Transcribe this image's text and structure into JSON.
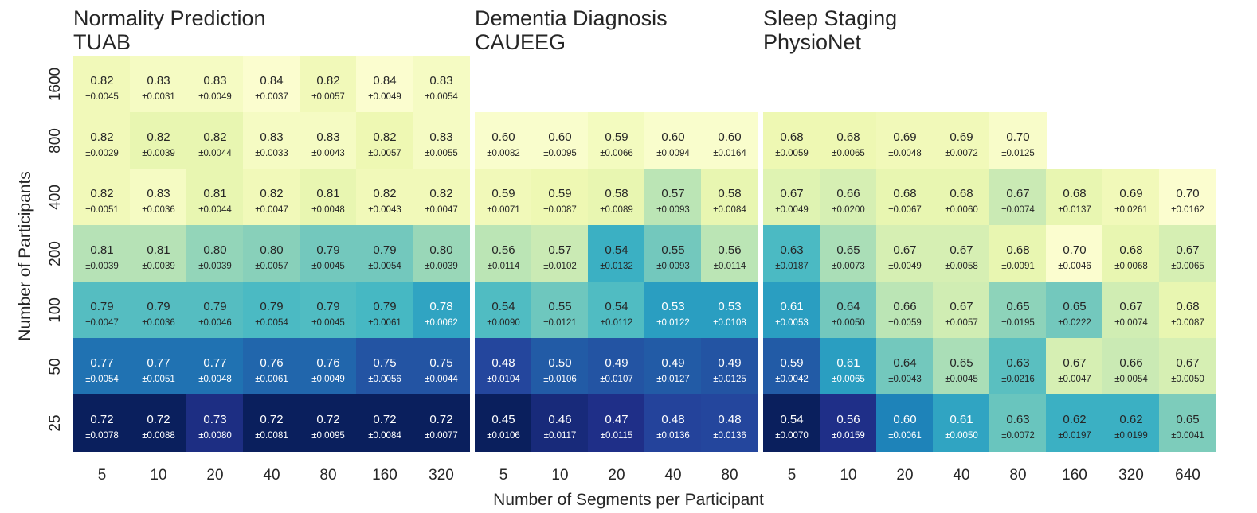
{
  "chart_data": {
    "type": "heatmap",
    "xlabel": "Number of Segments per Participant",
    "ylabel": "Number of Participants",
    "colormap": "YlGnBu",
    "color_range": [
      0.5,
      0.95
    ],
    "colors": {
      "text_dark": "#262626",
      "text_light": "#ffffff",
      "background": "#ffffff"
    },
    "panels": [
      {
        "id": "tuab",
        "title_line1": "Normality Prediction",
        "title_line2": "TUAB",
        "x": [
          5,
          10,
          20,
          40,
          80,
          160,
          320
        ],
        "y": [
          1600,
          800,
          400,
          200,
          100,
          50,
          25
        ],
        "mean": [
          [
            "0.82",
            "0.83",
            "0.83",
            "0.84",
            "0.82",
            "0.84",
            "0.83"
          ],
          [
            "0.82",
            "0.82",
            "0.82",
            "0.83",
            "0.83",
            "0.82",
            "0.83"
          ],
          [
            "0.82",
            "0.83",
            "0.81",
            "0.82",
            "0.81",
            "0.82",
            "0.82"
          ],
          [
            "0.81",
            "0.81",
            "0.80",
            "0.80",
            "0.79",
            "0.79",
            "0.80"
          ],
          [
            "0.79",
            "0.79",
            "0.79",
            "0.79",
            "0.79",
            "0.79",
            "0.78"
          ],
          [
            "0.77",
            "0.77",
            "0.77",
            "0.76",
            "0.76",
            "0.75",
            "0.75"
          ],
          [
            "0.72",
            "0.72",
            "0.73",
            "0.72",
            "0.72",
            "0.72",
            "0.72"
          ]
        ],
        "std": [
          [
            "±0.0045",
            "±0.0031",
            "±0.0049",
            "±0.0037",
            "±0.0057",
            "±0.0049",
            "±0.0054"
          ],
          [
            "±0.0029",
            "±0.0039",
            "±0.0044",
            "±0.0033",
            "±0.0043",
            "±0.0057",
            "±0.0055"
          ],
          [
            "±0.0051",
            "±0.0036",
            "±0.0044",
            "±0.0047",
            "±0.0048",
            "±0.0043",
            "±0.0047"
          ],
          [
            "±0.0039",
            "±0.0039",
            "±0.0039",
            "±0.0057",
            "±0.0045",
            "±0.0054",
            "±0.0039"
          ],
          [
            "±0.0047",
            "±0.0036",
            "±0.0046",
            "±0.0054",
            "±0.0045",
            "±0.0061",
            "±0.0062"
          ],
          [
            "±0.0054",
            "±0.0051",
            "±0.0048",
            "±0.0061",
            "±0.0049",
            "±0.0056",
            "±0.0044"
          ],
          [
            "±0.0078",
            "±0.0088",
            "±0.0080",
            "±0.0081",
            "±0.0095",
            "±0.0084",
            "±0.0077"
          ]
        ],
        "color_level": [
          [
            0.1,
            0.07,
            0.07,
            0.03,
            0.1,
            0.03,
            0.07
          ],
          [
            0.1,
            0.14,
            0.14,
            0.07,
            0.07,
            0.12,
            0.07
          ],
          [
            0.1,
            0.07,
            0.14,
            0.1,
            0.14,
            0.1,
            0.1
          ],
          [
            0.28,
            0.28,
            0.34,
            0.36,
            0.4,
            0.4,
            0.33
          ],
          [
            0.46,
            0.46,
            0.46,
            0.48,
            0.47,
            0.49,
            0.56
          ],
          [
            0.7,
            0.7,
            0.7,
            0.73,
            0.73,
            0.78,
            0.78
          ],
          [
            0.99,
            0.99,
            0.91,
            0.99,
            0.99,
            0.99,
            0.99
          ]
        ]
      },
      {
        "id": "caueeg",
        "title_line1": "Dementia Diagnosis",
        "title_line2": "CAUEEG",
        "x": [
          5,
          10,
          20,
          40,
          80
        ],
        "y": [
          800,
          400,
          200,
          100,
          50,
          25
        ],
        "mean": [
          [
            "0.60",
            "0.60",
            "0.59",
            "0.60",
            "0.60"
          ],
          [
            "0.59",
            "0.59",
            "0.58",
            "0.57",
            "0.58"
          ],
          [
            "0.56",
            "0.57",
            "0.54",
            "0.55",
            "0.56"
          ],
          [
            "0.54",
            "0.55",
            "0.54",
            "0.53",
            "0.53"
          ],
          [
            "0.48",
            "0.50",
            "0.49",
            "0.49",
            "0.49"
          ],
          [
            "0.45",
            "0.46",
            "0.47",
            "0.48",
            "0.48"
          ]
        ],
        "std": [
          [
            "±0.0082",
            "±0.0095",
            "±0.0066",
            "±0.0094",
            "±0.0164"
          ],
          [
            "±0.0071",
            "±0.0087",
            "±0.0089",
            "±0.0093",
            "±0.0084"
          ],
          [
            "±0.0114",
            "±0.0102",
            "±0.0132",
            "±0.0093",
            "±0.0114"
          ],
          [
            "±0.0090",
            "±0.0121",
            "±0.0112",
            "±0.0122",
            "±0.0108"
          ],
          [
            "±0.0104",
            "±0.0106",
            "±0.0107",
            "±0.0127",
            "±0.0125"
          ],
          [
            "±0.0106",
            "±0.0117",
            "±0.0115",
            "±0.0136",
            "±0.0136"
          ]
        ],
        "color_level": [
          [
            0.04,
            0.04,
            0.08,
            0.04,
            0.04
          ],
          [
            0.1,
            0.12,
            0.14,
            0.27,
            0.14
          ],
          [
            0.27,
            0.24,
            0.52,
            0.4,
            0.27
          ],
          [
            0.47,
            0.41,
            0.47,
            0.58,
            0.58
          ],
          [
            0.82,
            0.76,
            0.78,
            0.76,
            0.78
          ],
          [
            0.99,
            0.93,
            0.9,
            0.83,
            0.82
          ]
        ]
      },
      {
        "id": "physionet",
        "title_line1": "Sleep Staging",
        "title_line2": "PhysioNet",
        "x": [
          5,
          10,
          20,
          40,
          80,
          160,
          320,
          640
        ],
        "y": [
          800,
          400,
          200,
          100,
          50,
          25
        ],
        "mean": [
          [
            "0.68",
            "0.68",
            "0.69",
            "0.69",
            "0.70",
            null,
            null,
            null
          ],
          [
            "0.67",
            "0.66",
            "0.68",
            "0.68",
            "0.67",
            "0.68",
            "0.69",
            "0.70"
          ],
          [
            "0.63",
            "0.65",
            "0.67",
            "0.67",
            "0.68",
            "0.70",
            "0.68",
            "0.67"
          ],
          [
            "0.61",
            "0.64",
            "0.66",
            "0.67",
            "0.65",
            "0.65",
            "0.67",
            "0.68"
          ],
          [
            "0.59",
            "0.61",
            "0.64",
            "0.65",
            "0.63",
            "0.67",
            "0.66",
            "0.67"
          ],
          [
            "0.54",
            "0.56",
            "0.60",
            "0.61",
            "0.63",
            "0.62",
            "0.62",
            "0.65"
          ]
        ],
        "std": [
          [
            "±0.0059",
            "±0.0065",
            "±0.0048",
            "±0.0072",
            "±0.0125",
            null,
            null,
            null
          ],
          [
            "±0.0049",
            "±0.0200",
            "±0.0067",
            "±0.0060",
            "±0.0074",
            "±0.0137",
            "±0.0261",
            "±0.0162"
          ],
          [
            "±0.0187",
            "±0.0073",
            "±0.0049",
            "±0.0058",
            "±0.0091",
            "±0.0046",
            "±0.0068",
            "±0.0065"
          ],
          [
            "±0.0053",
            "±0.0050",
            "±0.0059",
            "±0.0057",
            "±0.0195",
            "±0.0222",
            "±0.0074",
            "±0.0087"
          ],
          [
            "±0.0042",
            "±0.0065",
            "±0.0043",
            "±0.0045",
            "±0.0216",
            "±0.0047",
            "±0.0054",
            "±0.0050"
          ],
          [
            "±0.0070",
            "±0.0159",
            "±0.0061",
            "±0.0050",
            "±0.0072",
            "±0.0197",
            "±0.0199",
            "±0.0041"
          ]
        ],
        "color_level": [
          [
            0.12,
            0.12,
            0.1,
            0.1,
            0.05,
            null,
            null,
            null
          ],
          [
            0.17,
            0.2,
            0.14,
            0.14,
            0.24,
            0.14,
            0.1,
            0.03
          ],
          [
            0.48,
            0.3,
            0.2,
            0.2,
            0.14,
            0.03,
            0.14,
            0.2
          ],
          [
            0.58,
            0.4,
            0.27,
            0.22,
            0.35,
            0.4,
            0.22,
            0.14
          ],
          [
            0.76,
            0.58,
            0.4,
            0.3,
            0.45,
            0.2,
            0.24,
            0.2
          ],
          [
            0.99,
            0.9,
            0.66,
            0.56,
            0.42,
            0.52,
            0.52,
            0.38
          ]
        ]
      }
    ]
  }
}
